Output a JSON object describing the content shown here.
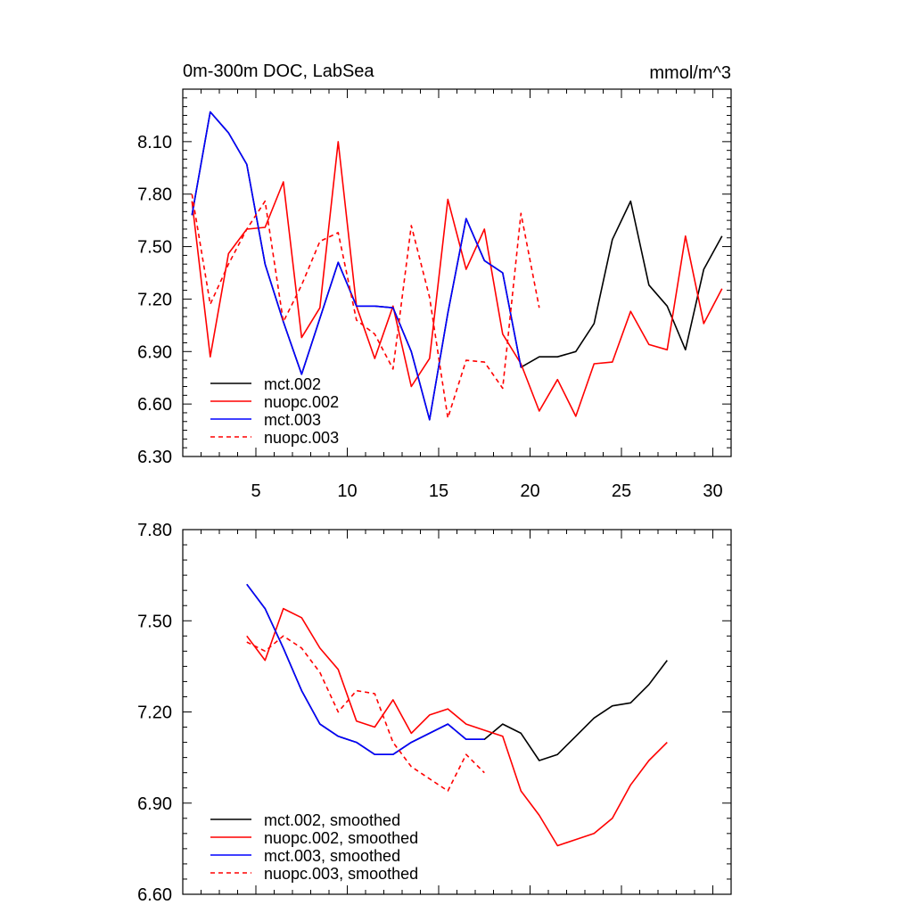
{
  "chart_data": [
    {
      "type": "line",
      "title_left": "0m-300m DOC, LabSea",
      "title_right": "mmol/m^3",
      "xlabel": "",
      "ylabel": "",
      "xlim": [
        1,
        31
      ],
      "ylim": [
        6.3,
        8.4
      ],
      "xticks": [
        5,
        10,
        15,
        20,
        25,
        30
      ],
      "xtick_labels": [
        "5",
        "10",
        "15",
        "20",
        "25",
        "30"
      ],
      "yticks": [
        6.3,
        6.6,
        6.9,
        7.2,
        7.5,
        7.8,
        8.1
      ],
      "ytick_labels": [
        "6.30",
        "6.60",
        "6.90",
        "7.20",
        "7.50",
        "7.80",
        "8.10"
      ],
      "legend_position": "bottom-left",
      "series": [
        {
          "name": "mct.002",
          "color": "#000000",
          "dash": "solid",
          "x": [
            1.5,
            2.5,
            3.5,
            4.5,
            5.5,
            6.5,
            7.5,
            8.5,
            9.5,
            10.5,
            11.5,
            12.5,
            13.5,
            14.5,
            15.5,
            16.5,
            17.5,
            18.5,
            19.5,
            20.5,
            21.5,
            22.5,
            23.5,
            24.5,
            25.5,
            26.5,
            27.5,
            28.5,
            29.5,
            30.5
          ],
          "values": [
            7.68,
            8.27,
            8.15,
            7.97,
            7.4,
            7.07,
            6.77,
            7.09,
            7.41,
            7.16,
            7.16,
            7.15,
            6.9,
            6.51,
            7.12,
            7.66,
            7.42,
            7.35,
            6.81,
            6.87,
            6.87,
            6.9,
            7.06,
            7.54,
            7.76,
            7.28,
            7.16,
            6.91,
            7.37,
            7.56
          ]
        },
        {
          "name": "nuopc.002",
          "color": "#ff0000",
          "dash": "solid",
          "x": [
            1.5,
            2.5,
            3.5,
            4.5,
            5.5,
            6.5,
            7.5,
            8.5,
            9.5,
            10.5,
            11.5,
            12.5,
            13.5,
            14.5,
            15.5,
            16.5,
            17.5,
            18.5,
            19.5,
            20.5,
            21.5,
            22.5,
            23.5,
            24.5,
            25.5,
            26.5,
            27.5,
            28.5,
            29.5,
            30.5
          ],
          "values": [
            7.76,
            6.87,
            7.46,
            7.6,
            7.61,
            7.87,
            6.98,
            7.15,
            8.1,
            7.16,
            6.86,
            7.16,
            6.7,
            6.86,
            7.77,
            7.37,
            7.6,
            7.0,
            6.83,
            6.56,
            6.74,
            6.53,
            6.83,
            6.84,
            7.13,
            6.94,
            6.91,
            7.56,
            7.06,
            7.26
          ]
        },
        {
          "name": "mct.003",
          "color": "#0000ff",
          "dash": "solid",
          "x": [
            1.5,
            2.5,
            3.5,
            4.5,
            5.5,
            6.5,
            7.5,
            8.5,
            9.5,
            10.5,
            11.5,
            12.5,
            13.5,
            14.5,
            15.5,
            16.5,
            17.5,
            18.5,
            19.5
          ],
          "values": [
            7.68,
            8.27,
            8.15,
            7.97,
            7.4,
            7.07,
            6.77,
            7.09,
            7.41,
            7.16,
            7.16,
            7.15,
            6.9,
            6.51,
            7.12,
            7.66,
            7.42,
            7.35,
            6.81
          ]
        },
        {
          "name": "nuopc.003",
          "color": "#ff0000",
          "dash": "dashed",
          "x": [
            1.5,
            2.5,
            3.5,
            4.5,
            5.5,
            6.5,
            7.5,
            8.5,
            9.5,
            10.5,
            11.5,
            12.5,
            13.5,
            14.5,
            15.5,
            16.5,
            17.5,
            18.5,
            19.5,
            20.5
          ],
          "values": [
            7.8,
            7.17,
            7.4,
            7.6,
            7.76,
            7.07,
            7.28,
            7.53,
            7.58,
            7.08,
            7.0,
            6.8,
            7.62,
            7.21,
            6.52,
            6.85,
            6.84,
            6.69,
            7.69,
            7.15
          ]
        }
      ]
    },
    {
      "type": "line",
      "title_left": "",
      "title_right": "",
      "xlabel": "",
      "ylabel": "",
      "xlim": [
        1,
        31
      ],
      "ylim": [
        6.6,
        7.8
      ],
      "xticks": [
        5,
        10,
        15,
        20,
        25,
        30
      ],
      "xtick_labels": [],
      "yticks": [
        6.6,
        6.9,
        7.2,
        7.5,
        7.8
      ],
      "ytick_labels": [
        "6.60",
        "6.90",
        "7.20",
        "7.50",
        "7.80"
      ],
      "legend_position": "bottom-left",
      "series": [
        {
          "name": "mct.002, smoothed",
          "color": "#000000",
          "dash": "solid",
          "x": [
            4.5,
            5.5,
            6.5,
            7.5,
            8.5,
            9.5,
            10.5,
            11.5,
            12.5,
            13.5,
            14.5,
            15.5,
            16.5,
            17.5,
            18.5,
            19.5,
            20.5,
            21.5,
            22.5,
            23.5,
            24.5,
            25.5,
            26.5,
            27.5
          ],
          "values": [
            7.62,
            7.54,
            7.41,
            7.27,
            7.16,
            7.12,
            7.1,
            7.06,
            7.06,
            7.1,
            7.13,
            7.16,
            7.11,
            7.11,
            7.16,
            7.13,
            7.04,
            7.06,
            7.12,
            7.18,
            7.22,
            7.23,
            7.29,
            7.37
          ]
        },
        {
          "name": "nuopc.002, smoothed",
          "color": "#ff0000",
          "dash": "solid",
          "x": [
            4.5,
            5.5,
            6.5,
            7.5,
            8.5,
            9.5,
            10.5,
            11.5,
            12.5,
            13.5,
            14.5,
            15.5,
            16.5,
            17.5,
            18.5,
            19.5,
            20.5,
            21.5,
            22.5,
            23.5,
            24.5,
            25.5,
            26.5,
            27.5
          ],
          "values": [
            7.45,
            7.37,
            7.54,
            7.51,
            7.41,
            7.34,
            7.17,
            7.15,
            7.24,
            7.13,
            7.19,
            7.21,
            7.16,
            7.14,
            7.12,
            6.94,
            6.86,
            6.76,
            6.78,
            6.8,
            6.85,
            6.96,
            7.04,
            7.1
          ]
        },
        {
          "name": "mct.003, smoothed",
          "color": "#0000ff",
          "dash": "solid",
          "x": [
            4.5,
            5.5,
            6.5,
            7.5,
            8.5,
            9.5,
            10.5,
            11.5,
            12.5,
            13.5,
            14.5,
            15.5,
            16.5,
            17.5
          ],
          "values": [
            7.62,
            7.54,
            7.41,
            7.27,
            7.16,
            7.12,
            7.1,
            7.06,
            7.06,
            7.1,
            7.13,
            7.16,
            7.11,
            7.11
          ]
        },
        {
          "name": "nuopc.003, smoothed",
          "color": "#ff0000",
          "dash": "dashed",
          "x": [
            4.5,
            5.5,
            6.5,
            7.5,
            8.5,
            9.5,
            10.5,
            11.5,
            12.5,
            13.5,
            14.5,
            15.5,
            16.5,
            17.5
          ],
          "values": [
            7.43,
            7.4,
            7.45,
            7.41,
            7.33,
            7.2,
            7.27,
            7.26,
            7.1,
            7.02,
            6.98,
            6.94,
            7.06,
            7.0
          ]
        }
      ]
    }
  ]
}
